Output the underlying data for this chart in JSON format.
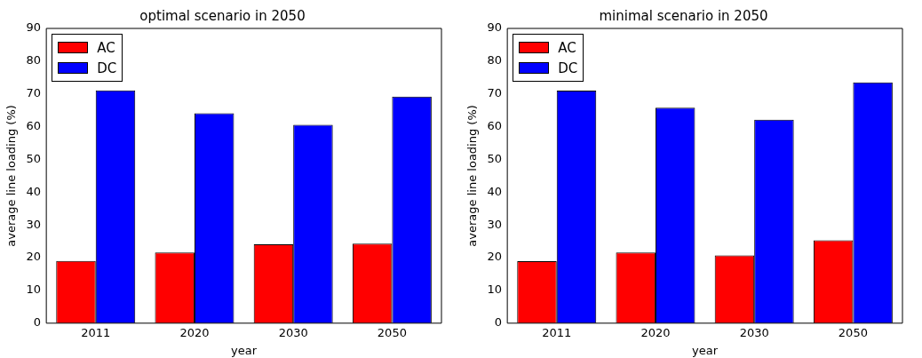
{
  "chart_data": [
    {
      "type": "bar",
      "title": "optimal scenario in 2050",
      "xlabel": "year",
      "ylabel": "average line loading (%)",
      "categories": [
        "2011",
        "2020",
        "2030",
        "2050"
      ],
      "series": [
        {
          "name": "AC",
          "color": "#ff0000",
          "values": [
            19,
            21.6,
            24.1,
            24.3
          ]
        },
        {
          "name": "DC",
          "color": "#0000ff",
          "values": [
            71.1,
            64.1,
            60.6,
            69.2
          ]
        }
      ],
      "ylim": [
        0,
        90
      ],
      "yticks": [
        0,
        10,
        20,
        30,
        40,
        50,
        60,
        70,
        80,
        90
      ],
      "legend": "top left"
    },
    {
      "type": "bar",
      "title": "minimal scenario in 2050",
      "xlabel": "year",
      "ylabel": "average line loading (%)",
      "categories": [
        "2011",
        "2020",
        "2030",
        "2050"
      ],
      "series": [
        {
          "name": "AC",
          "color": "#ff0000",
          "values": [
            18.9,
            21.6,
            20.7,
            25.3
          ]
        },
        {
          "name": "DC",
          "color": "#0000ff",
          "values": [
            71,
            65.8,
            62.1,
            73.5
          ]
        }
      ],
      "ylim": [
        0,
        90
      ],
      "yticks": [
        0,
        10,
        20,
        30,
        40,
        50,
        60,
        70,
        80,
        90
      ],
      "legend": "top left"
    }
  ]
}
